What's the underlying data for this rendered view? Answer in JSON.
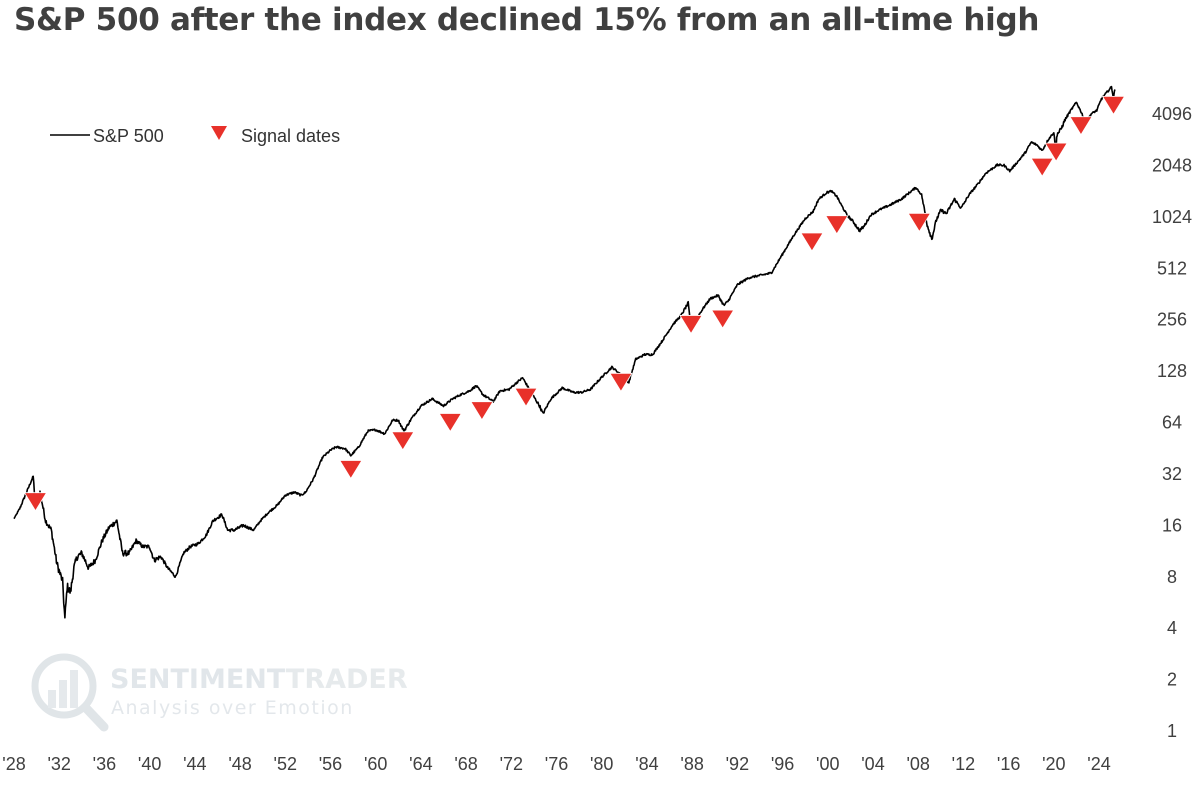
{
  "chart_data": {
    "type": "line",
    "title": "S&P 500 after the index declined 15% from an all-time high",
    "y_scale": "log2",
    "ylim": [
      1,
      4096
    ],
    "xlim": [
      1928,
      2025.5
    ],
    "y_ticks": [
      "1",
      "2",
      "4",
      "8",
      "16",
      "32",
      "64",
      "128",
      "256",
      "512",
      "1024",
      "2048",
      "4096"
    ],
    "x_ticks": [
      "'28",
      "'32",
      "'36",
      "'40",
      "'44",
      "'48",
      "'52",
      "'56",
      "'60",
      "'64",
      "'68",
      "'72",
      "'76",
      "'80",
      "'84",
      "'88",
      "'92",
      "'96",
      "'00",
      "'04",
      "'08",
      "'12",
      "'16",
      "'20",
      "'24"
    ],
    "legend": {
      "placement": "top-left",
      "items": [
        "S&P 500",
        "Signal dates"
      ]
    },
    "grid": false,
    "colors": {
      "line": "#000000",
      "signal": "#e8312a",
      "text": "#404040"
    },
    "series": [
      {
        "name": "S&P 500",
        "x": [
          1928.0,
          1928.5,
          1929.0,
          1929.7,
          1929.9,
          1930.3,
          1930.8,
          1931.3,
          1931.8,
          1932.3,
          1932.5,
          1932.7,
          1933.0,
          1933.3,
          1933.6,
          1934.0,
          1934.6,
          1935.2,
          1935.8,
          1936.4,
          1937.1,
          1937.6,
          1938.2,
          1938.8,
          1939.4,
          1940.0,
          1940.4,
          1941.0,
          1941.6,
          1942.3,
          1943.0,
          1943.6,
          1944.3,
          1945.0,
          1945.6,
          1946.4,
          1946.9,
          1947.5,
          1948.3,
          1949.2,
          1949.8,
          1950.5,
          1951.3,
          1952.0,
          1952.8,
          1953.4,
          1953.8,
          1954.5,
          1955.3,
          1956.0,
          1956.5,
          1957.3,
          1957.8,
          1958.5,
          1959.3,
          1960.0,
          1960.8,
          1961.5,
          1962.0,
          1962.5,
          1963.2,
          1964.0,
          1965.0,
          1966.0,
          1966.8,
          1967.5,
          1968.3,
          1968.9,
          1969.5,
          1970.4,
          1971.0,
          1971.8,
          1972.5,
          1973.0,
          1973.8,
          1974.5,
          1974.8,
          1975.5,
          1976.5,
          1977.5,
          1978.2,
          1979.0,
          1980.0,
          1980.9,
          1981.5,
          1982.4,
          1983.0,
          1983.8,
          1984.5,
          1985.3,
          1986.3,
          1987.0,
          1987.65,
          1987.85,
          1988.3,
          1989.0,
          1989.6,
          1990.3,
          1990.8,
          1991.2,
          1992.0,
          1993.0,
          1994.0,
          1995.0,
          1996.0,
          1997.0,
          1998.0,
          1998.7,
          1999.2,
          1999.9,
          2000.3,
          2000.8,
          2001.2,
          2001.7,
          2002.3,
          2002.8,
          2003.2,
          2003.8,
          2004.5,
          2005.5,
          2006.5,
          2007.4,
          2007.8,
          2008.3,
          2008.8,
          2009.2,
          2009.6,
          2010.0,
          2010.5,
          2011.2,
          2011.8,
          2012.5,
          2013.3,
          2014.0,
          2015.0,
          2015.6,
          2016.1,
          2016.8,
          2017.5,
          2018.0,
          2018.5,
          2018.97,
          2019.5,
          2020.0,
          2020.2,
          2020.25,
          2020.6,
          2021.0,
          2021.5,
          2022.0,
          2022.5,
          2022.8,
          2023.3,
          2023.8,
          2024.2,
          2024.7,
          2025.1,
          2025.28,
          2025.4
        ],
        "values": [
          17.5,
          20,
          24,
          31,
          21,
          25,
          17,
          15,
          9.5,
          7.5,
          4.5,
          7,
          6.5,
          9,
          10.5,
          11,
          9,
          10,
          13,
          15.5,
          17,
          11,
          11,
          13,
          12,
          12,
          10,
          10.5,
          9,
          8,
          11,
          12,
          12.5,
          14,
          17,
          18.5,
          15,
          15,
          16,
          15,
          17,
          19,
          21,
          24,
          25,
          24,
          25,
          30,
          40,
          44,
          46,
          45,
          41,
          46,
          57,
          58,
          55,
          66,
          66,
          57,
          68,
          80,
          88,
          80,
          88,
          93,
          98,
          105,
          93,
          85,
          98,
          100,
          110,
          117,
          95,
          80,
          72,
          88,
          102,
          96,
          96,
          100,
          118,
          135,
          125,
          110,
          150,
          160,
          160,
          190,
          240,
          270,
          320,
          240,
          255,
          300,
          340,
          355,
          310,
          330,
          410,
          450,
          465,
          480,
          620,
          800,
          1000,
          1100,
          1300,
          1420,
          1450,
          1350,
          1200,
          1050,
          950,
          850,
          900,
          1050,
          1120,
          1200,
          1300,
          1450,
          1520,
          1380,
          920,
          760,
          980,
          1120,
          1070,
          1300,
          1150,
          1380,
          1600,
          1850,
          2060,
          2050,
          1900,
          2150,
          2450,
          2800,
          2700,
          2500,
          2900,
          3200,
          2400,
          3100,
          3300,
          3800,
          4300,
          4800,
          4100,
          3600,
          4100,
          4300,
          5000,
          5500,
          5900,
          5100,
          5700
        ],
        "noise": [
          0,
          0.02,
          0.02,
          0.02,
          0.04,
          0.05,
          0.05,
          0.06,
          0.07,
          0.08,
          0.09,
          0.09,
          0.09,
          0.08,
          0.07,
          0.06,
          0.06,
          0.05,
          0.05,
          0.05,
          0.05,
          0.06,
          0.05,
          0.04,
          0.04,
          0.04,
          0.05,
          0.04,
          0.03,
          0.03,
          0.03,
          0.03,
          0.03,
          0.03,
          0.03,
          0.03,
          0.03,
          0.03,
          0.03,
          0.02,
          0.02,
          0.02,
          0.02,
          0.02,
          0.02,
          0.02,
          0.02,
          0.02,
          0.02,
          0.02,
          0.02,
          0.02,
          0.02,
          0.02,
          0.02,
          0.02,
          0.02,
          0.02,
          0.02,
          0.03,
          0.02,
          0.02,
          0.02,
          0.02,
          0.02,
          0.02,
          0.02,
          0.02,
          0.02,
          0.02,
          0.02,
          0.02,
          0.02,
          0.02,
          0.02,
          0.03,
          0.03,
          0.02,
          0.02,
          0.02,
          0.02,
          0.02,
          0.02,
          0.02,
          0.02,
          0.02,
          0.02,
          0.02,
          0.02,
          0.02,
          0.02,
          0.02,
          0.03,
          0.04,
          0.03,
          0.02,
          0.02,
          0.02,
          0.03,
          0.02,
          0.02,
          0.02,
          0.02,
          0.02,
          0.02,
          0.02,
          0.02,
          0.02,
          0.02,
          0.02,
          0.02,
          0.02,
          0.02,
          0.02,
          0.03,
          0.03,
          0.03,
          0.02,
          0.02,
          0.02,
          0.02,
          0.02,
          0.02,
          0.02,
          0.04,
          0.04,
          0.04,
          0.03,
          0.03,
          0.03,
          0.03,
          0.02,
          0.02,
          0.02,
          0.02,
          0.02,
          0.02,
          0.02,
          0.02,
          0.02,
          0.02,
          0.02,
          0.02,
          0.02,
          0.03,
          0.05,
          0.04,
          0.03,
          0.02,
          0.02,
          0.02,
          0.02,
          0.02,
          0.02,
          0.02,
          0.02,
          0.02,
          0.03,
          0.02
        ]
      },
      {
        "name": "Signal dates",
        "kind": "marker",
        "x": [
          1929.9,
          1957.8,
          1962.4,
          1966.6,
          1969.4,
          1973.3,
          1981.7,
          1987.9,
          1990.7,
          1998.6,
          2000.8,
          2008.1,
          2018.97,
          2020.2,
          2022.4,
          2025.28
        ],
        "values": [
          22,
          34,
          50,
          64,
          75,
          90,
          110,
          240,
          258,
          730,
          920,
          950,
          2000,
          2450,
          3500,
          4600
        ]
      }
    ]
  },
  "watermark": {
    "brand_part1": "SENTIMENT",
    "brand_part2": "TRADER",
    "tagline": "Analysis over Emotion"
  }
}
